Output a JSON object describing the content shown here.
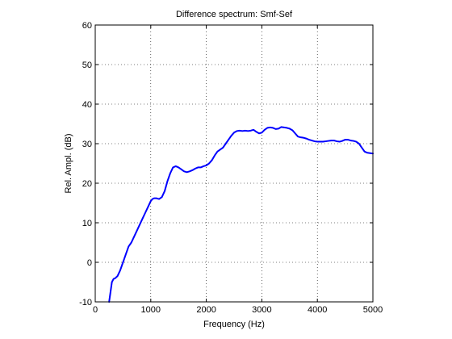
{
  "chart_data": {
    "type": "line",
    "title": "Difference spectrum: Smf-Sef",
    "xlabel": "Frequency (Hz)",
    "ylabel": "Rel. Ampl. (dB)",
    "xlim": [
      0,
      5000
    ],
    "ylim": [
      -10,
      60
    ],
    "xticks": [
      0,
      1000,
      2000,
      3000,
      4000,
      5000
    ],
    "yticks": [
      -10,
      0,
      10,
      20,
      30,
      40,
      50,
      60
    ],
    "xtick_labels": [
      "0",
      "1000",
      "2000",
      "3000",
      "4000",
      "5000"
    ],
    "ytick_labels": [
      "-10",
      "0",
      "10",
      "20",
      "30",
      "40",
      "50",
      "60"
    ],
    "grid": true,
    "line_color": "#0000ff",
    "series": [
      {
        "x": [
          250,
          270,
          300,
          330,
          360,
          400,
          450,
          500,
          550,
          600,
          650,
          700,
          750,
          800,
          850,
          900,
          950,
          1000,
          1030,
          1060,
          1100,
          1150,
          1200,
          1250,
          1300,
          1350,
          1400,
          1450,
          1500,
          1550,
          1600,
          1650,
          1700,
          1750,
          1800,
          1850,
          1900,
          1950,
          2000,
          2050,
          2100,
          2150,
          2200,
          2250,
          2300,
          2350,
          2400,
          2450,
          2500,
          2550,
          2600,
          2650,
          2700,
          2750,
          2800,
          2850,
          2900,
          2950,
          3000,
          3050,
          3100,
          3150,
          3200,
          3250,
          3300,
          3350,
          3400,
          3450,
          3500,
          3550,
          3600,
          3650,
          3700,
          3750,
          3800,
          3850,
          3900,
          3950,
          4000,
          4050,
          4100,
          4150,
          4200,
          4250,
          4300,
          4350,
          4400,
          4450,
          4500,
          4550,
          4600,
          4650,
          4700,
          4750,
          4800,
          4850,
          4900,
          4950,
          5000
        ],
        "y": [
          -10,
          -8,
          -5,
          -4.2,
          -4,
          -3.5,
          -2,
          0,
          2,
          4,
          5,
          6.5,
          8,
          9.5,
          11,
          12.5,
          14,
          15.5,
          16,
          16.2,
          16.2,
          16,
          16.5,
          18,
          20.5,
          22.5,
          24,
          24.3,
          24,
          23.5,
          23,
          22.8,
          23,
          23.3,
          23.7,
          24,
          24,
          24.3,
          24.5,
          25,
          25.8,
          27,
          28,
          28.5,
          29,
          30,
          31,
          32,
          32.8,
          33.2,
          33.3,
          33.2,
          33.3,
          33.2,
          33.3,
          33.5,
          33,
          32.6,
          32.8,
          33.5,
          34,
          34.1,
          34,
          33.7,
          33.8,
          34.2,
          34.1,
          34,
          33.8,
          33.4,
          32.6,
          31.8,
          31.6,
          31.5,
          31.3,
          31,
          30.8,
          30.6,
          30.5,
          30.5,
          30.5,
          30.6,
          30.7,
          30.8,
          30.8,
          30.6,
          30.5,
          30.7,
          31,
          31,
          30.8,
          30.7,
          30.5,
          30,
          29,
          28,
          27.7,
          27.6,
          27.5
        ]
      }
    ]
  }
}
